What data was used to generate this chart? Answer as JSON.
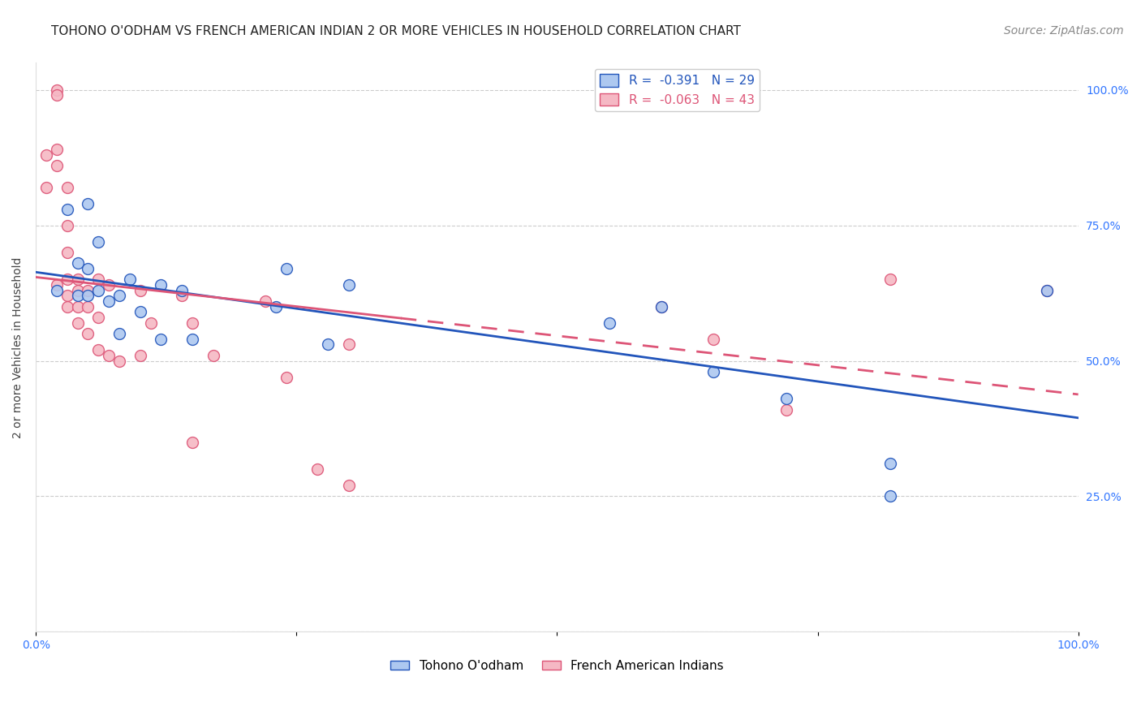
{
  "title": "TOHONO O'ODHAM VS FRENCH AMERICAN INDIAN 2 OR MORE VEHICLES IN HOUSEHOLD CORRELATION CHART",
  "source": "Source: ZipAtlas.com",
  "ylabel": "2 or more Vehicles in Household",
  "xlim": [
    0.0,
    1.0
  ],
  "ylim": [
    0.0,
    1.05
  ],
  "yticks": [
    0.0,
    0.25,
    0.5,
    0.75,
    1.0
  ],
  "ytick_labels": [
    "",
    "25.0%",
    "50.0%",
    "75.0%",
    "100.0%"
  ],
  "legend_blue_R": "-0.391",
  "legend_blue_N": "29",
  "legend_pink_R": "-0.063",
  "legend_pink_N": "43",
  "blue_color": "#adc8f0",
  "pink_color": "#f5b8c4",
  "blue_line_color": "#2255bb",
  "pink_line_color": "#dd5577",
  "grid_color": "#cccccc",
  "background_color": "#ffffff",
  "blue_scatter_x": [
    0.02,
    0.03,
    0.04,
    0.04,
    0.05,
    0.05,
    0.05,
    0.06,
    0.06,
    0.07,
    0.08,
    0.08,
    0.09,
    0.1,
    0.12,
    0.12,
    0.14,
    0.15,
    0.23,
    0.24,
    0.28,
    0.3,
    0.55,
    0.6,
    0.65,
    0.72,
    0.82,
    0.82,
    0.97
  ],
  "blue_scatter_y": [
    0.63,
    0.78,
    0.68,
    0.62,
    0.79,
    0.67,
    0.62,
    0.72,
    0.63,
    0.61,
    0.62,
    0.55,
    0.65,
    0.59,
    0.64,
    0.54,
    0.63,
    0.54,
    0.6,
    0.67,
    0.53,
    0.64,
    0.57,
    0.6,
    0.48,
    0.43,
    0.31,
    0.25,
    0.63
  ],
  "pink_scatter_x": [
    0.01,
    0.01,
    0.02,
    0.02,
    0.02,
    0.02,
    0.02,
    0.03,
    0.03,
    0.03,
    0.03,
    0.03,
    0.03,
    0.04,
    0.04,
    0.04,
    0.04,
    0.05,
    0.05,
    0.05,
    0.06,
    0.06,
    0.06,
    0.07,
    0.07,
    0.08,
    0.1,
    0.1,
    0.11,
    0.14,
    0.15,
    0.15,
    0.17,
    0.22,
    0.24,
    0.27,
    0.3,
    0.3,
    0.6,
    0.65,
    0.72,
    0.82,
    0.97
  ],
  "pink_scatter_y": [
    0.88,
    0.82,
    1.0,
    0.99,
    0.89,
    0.86,
    0.64,
    0.82,
    0.75,
    0.7,
    0.65,
    0.62,
    0.6,
    0.65,
    0.63,
    0.6,
    0.57,
    0.63,
    0.6,
    0.55,
    0.65,
    0.58,
    0.52,
    0.64,
    0.51,
    0.5,
    0.63,
    0.51,
    0.57,
    0.62,
    0.35,
    0.57,
    0.51,
    0.61,
    0.47,
    0.3,
    0.53,
    0.27,
    0.6,
    0.54,
    0.41,
    0.65,
    0.63
  ],
  "marker_size": 100,
  "title_fontsize": 11,
  "axis_label_fontsize": 10,
  "tick_fontsize": 10,
  "legend_fontsize": 11,
  "source_fontsize": 10
}
